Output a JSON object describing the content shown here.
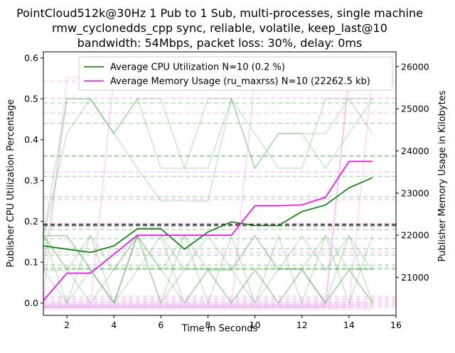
{
  "chart_data": {
    "type": "line",
    "title_lines": [
      "PointCloud512k@30Hz 1 Pub to 1 Sub, multi-processes, single machine",
      "rmw_cyclonedds_cpp sync, reliable, volatile, keep_last@10",
      "bandwidth: 54Mbps, packet loss: 30%, delay: 0ms"
    ],
    "xlabel": "Time in Seconds",
    "ylabel_left": "Publisher CPU Utilization Percentage",
    "ylabel_right": "Publisher Memory Usage in Kilobytes",
    "xlim": [
      1,
      16
    ],
    "ylim_left": [
      -0.03,
      0.615
    ],
    "ylim_right": [
      20100,
      26350
    ],
    "x_ticks": [
      2,
      4,
      6,
      8,
      10,
      12,
      14,
      16
    ],
    "y_ticks_left": [
      0.0,
      0.1,
      0.2,
      0.3,
      0.4,
      0.5,
      0.6
    ],
    "y_ticks_right": [
      21000,
      22000,
      23000,
      24000,
      25000,
      26000
    ],
    "legend_position": "top-center",
    "colors": {
      "cpu": "#008000",
      "mem": "#ff00ff",
      "cpu_runs": "#2ca02c",
      "mem_runs": "#ff80ff",
      "cpu_mean": "#800080"
    },
    "x": [
      1,
      2,
      3,
      4,
      5,
      6,
      7,
      8,
      9,
      10,
      11,
      12,
      13,
      14,
      15
    ],
    "series": [
      {
        "name": "Average CPU Utilization N=10 (0.2 %)",
        "axis": "left",
        "values": [
          0.14,
          0.132,
          0.124,
          0.14,
          0.182,
          0.182,
          0.132,
          0.174,
          0.199,
          0.19,
          0.19,
          0.224,
          0.24,
          0.282,
          0.307
        ]
      },
      {
        "name": "Average Memory Usage (ru_maxrss) N=10 (22262.5 kb)",
        "axis": "right",
        "values": [
          20450,
          21100,
          21100,
          21550,
          22000,
          22000,
          22000,
          22000,
          22000,
          22700,
          22700,
          22720,
          22900,
          23750,
          23750
        ]
      }
    ],
    "cpu_runs": [
      [
        0.165,
        0.165,
        0.083,
        0.083,
        0.083,
        0.083,
        0.083,
        0.083,
        0.083,
        0.083,
        0.083,
        0.083,
        0.083,
        0.083,
        0.083
      ],
      [
        0.165,
        0.165,
        0.083,
        0.0,
        0.165,
        0.083,
        0.0,
        0.083,
        0.0,
        0.083,
        0.0,
        0.083,
        0.0,
        0.083,
        0.0
      ],
      [
        0.08,
        0.5,
        0.5,
        0.415,
        0.5,
        0.5,
        0.33,
        0.33,
        0.5,
        0.33,
        0.415,
        0.415,
        0.415,
        0.5,
        0.415
      ],
      [
        0.165,
        0.0,
        0.165,
        0.0,
        0.165,
        0.0,
        0.165,
        0.0,
        0.165,
        0.0,
        0.165,
        0.0,
        0.165,
        0.0,
        0.165
      ],
      [
        0.165,
        0.083,
        0.083,
        0.0,
        0.165,
        0.165,
        0.083,
        0.083,
        0.083,
        0.165,
        0.083,
        0.083,
        0.165,
        0.083,
        0.083
      ],
      [
        0.165,
        0.5,
        0.5,
        0.415,
        0.33,
        0.25,
        0.25,
        0.25,
        0.5,
        0.415,
        0.33,
        0.33,
        0.5,
        0.5,
        0.5
      ],
      [
        0.165,
        0.083,
        0.0,
        0.083,
        0.165,
        0.0,
        0.083,
        0.165,
        0.083,
        0.0,
        0.083,
        0.083,
        0.0,
        0.165,
        0.0
      ],
      [
        0.08,
        0.08,
        0.165,
        0.08,
        0.165,
        0.08,
        0.165,
        0.08,
        0.08,
        0.165,
        0.08,
        0.165,
        0.08,
        0.165,
        0.08
      ],
      [
        0.165,
        0.415,
        0.5,
        0.415,
        0.5,
        0.33,
        0.33,
        0.5,
        0.5,
        0.33,
        0.415,
        0.415,
        0.33,
        0.415,
        0.5
      ],
      [
        0.08,
        0.0,
        0.08,
        0.0,
        0.08,
        0.165,
        0.0,
        0.08,
        0.0,
        0.08,
        0.0,
        0.08,
        0.0,
        0.08,
        0.0
      ]
    ],
    "mem_runs": [
      [
        20300,
        20300,
        20300,
        20300,
        20300,
        20300,
        20300,
        20300,
        20300,
        20300,
        20300,
        20300,
        20300,
        20300,
        20300
      ],
      [
        20350,
        20350,
        20350,
        20350,
        20350,
        20350,
        20350,
        20350,
        20350,
        20350,
        20350,
        20350,
        20350,
        20350,
        20350
      ],
      [
        20400,
        20400,
        20400,
        20400,
        20400,
        20400,
        20400,
        20400,
        20400,
        20400,
        20400,
        20400,
        20400,
        20400,
        20400
      ],
      [
        20450,
        25750,
        25750,
        25750,
        25750,
        25750,
        25750,
        25750,
        25750,
        25750,
        25750,
        25750,
        25750,
        25750,
        25750
      ],
      [
        20300,
        20300,
        20300,
        25750,
        25750,
        25750,
        25750,
        25750,
        25750,
        25750,
        25750,
        25750,
        25750,
        25750,
        25750
      ],
      [
        20300,
        20300,
        20300,
        20300,
        20300,
        20300,
        20300,
        20300,
        20300,
        25750,
        25750,
        25750,
        25750,
        25750,
        25750
      ],
      [
        20300,
        20300,
        20300,
        20300,
        20300,
        20300,
        20300,
        20300,
        20300,
        20300,
        20300,
        20300,
        20300,
        25750,
        25750
      ],
      [
        20250,
        20250,
        20250,
        20250,
        20250,
        20250,
        20250,
        20250,
        20250,
        20250,
        20250,
        20250,
        20250,
        20250,
        20250
      ],
      [
        20350,
        20350,
        20350,
        20350,
        20350,
        20350,
        20350,
        20350,
        20350,
        20350,
        20350,
        20350,
        20350,
        25800,
        25800
      ],
      [
        20300,
        20300,
        20300,
        20300,
        20300,
        20300,
        20300,
        20300,
        20300,
        20300,
        20300,
        20300,
        20300,
        20300,
        25800
      ]
    ],
    "cpu_run_means": [
      0.083,
      0.086,
      0.093,
      0.118,
      0.133,
      0.158,
      0.18,
      0.26,
      0.31,
      0.36,
      0.36,
      0.44,
      0.49
    ],
    "mem_run_means": [
      20300,
      20350,
      20400,
      20450,
      20500,
      20550,
      21600,
      22200,
      22850,
      23500,
      24900,
      25250,
      25650
    ],
    "cpu_overall_mean": 0.19,
    "mem_overall_mean": 22262.5
  }
}
